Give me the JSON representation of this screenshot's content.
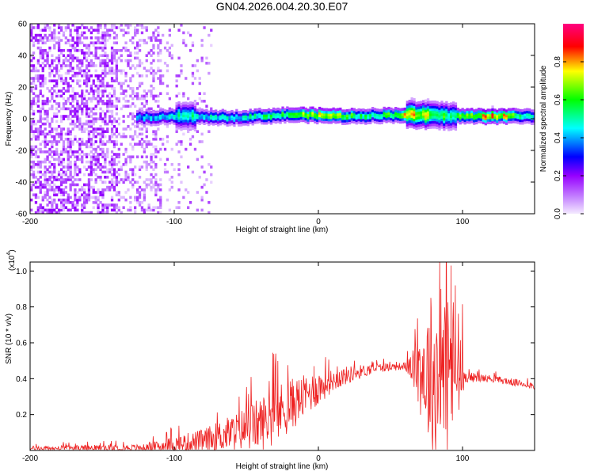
{
  "page": {
    "title": "GN04.2026.004.20.30.E07"
  },
  "chart_data": [
    {
      "id": "spectrogram",
      "type": "heatmap",
      "title": "GN04.2026.004.20.30.E07",
      "xlabel": "Height of straight line (km)",
      "ylabel": "Frequency (Hz)",
      "xlim": [
        -200,
        150
      ],
      "ylim": [
        -60,
        60
      ],
      "xticks": [
        -200,
        -100,
        0,
        100
      ],
      "xtick_labels": [
        "-200",
        "-100",
        "0",
        "100"
      ],
      "yticks": [
        -60,
        -40,
        -20,
        0,
        20,
        40,
        60
      ],
      "ytick_labels": [
        "-60",
        "-40",
        "-20",
        "0",
        "20",
        "40",
        "60"
      ],
      "colorbar": {
        "label": "Normalized spectral amplitude",
        "range": [
          0,
          1
        ],
        "ticks": [
          0.0,
          0.2,
          0.4,
          0.6,
          0.8
        ],
        "tick_labels": [
          "0.0",
          "0.2",
          "0.4",
          "0.6",
          "0.8"
        ],
        "colors": [
          "#f4eaff",
          "#9600ff",
          "#0000ff",
          "#00ffff",
          "#00ff00",
          "#ffff00",
          "#ff0000",
          "#ff0080"
        ]
      },
      "ridge": {
        "x_range": [
          -128,
          150
        ],
        "center_freq": [
          {
            "x": -128,
            "f": 0
          },
          {
            "x": -95,
            "f": 1
          },
          {
            "x": -60,
            "f": 0
          },
          {
            "x": -20,
            "f": 2
          },
          {
            "x": 20,
            "f": 1
          },
          {
            "x": 60,
            "f": 2
          },
          {
            "x": 100,
            "f": 1
          },
          {
            "x": 150,
            "f": 1
          }
        ],
        "peak_amplitude": [
          {
            "x": -128,
            "a": 0.45
          },
          {
            "x": -95,
            "a": 0.55
          },
          {
            "x": -60,
            "a": 0.5
          },
          {
            "x": -20,
            "a": 0.7
          },
          {
            "x": 0,
            "a": 0.8
          },
          {
            "x": 40,
            "a": 0.55
          },
          {
            "x": 65,
            "a": 0.9
          },
          {
            "x": 90,
            "a": 0.6
          },
          {
            "x": 120,
            "a": 0.95
          },
          {
            "x": 150,
            "a": 0.5
          }
        ]
      },
      "noise_region": {
        "x_range": [
          -200,
          -85
        ],
        "max_amplitude": 0.2
      }
    },
    {
      "id": "snr",
      "type": "line",
      "xlabel": "Height of straight line (km)",
      "ylabel": "SNR (10 * v/v)",
      "scale_label": "(x10",
      "scale_exp": "4",
      "scale_close": ")",
      "xlim": [
        -200,
        150
      ],
      "ylim": [
        0,
        1.05
      ],
      "xticks": [
        -200,
        -100,
        0,
        100
      ],
      "xtick_labels": [
        "-200",
        "-100",
        "0",
        "100"
      ],
      "yticks": [
        0.2,
        0.4,
        0.6,
        0.8,
        1.0
      ],
      "ytick_labels": [
        "0.2",
        "0.4",
        "0.6",
        "0.8",
        "1.0"
      ],
      "line_color": "#ee2222",
      "series": [
        {
          "name": "SNR",
          "envelope": [
            {
              "x": -200,
              "base": 0.01,
              "amp": 0.015
            },
            {
              "x": -120,
              "base": 0.015,
              "amp": 0.02
            },
            {
              "x": -100,
              "base": 0.03,
              "amp": 0.05
            },
            {
              "x": -80,
              "base": 0.05,
              "amp": 0.07
            },
            {
              "x": -60,
              "base": 0.1,
              "amp": 0.1
            },
            {
              "x": -40,
              "base": 0.15,
              "amp": 0.15
            },
            {
              "x": -30,
              "base": 0.2,
              "amp": 0.17
            },
            {
              "x": -20,
              "base": 0.25,
              "amp": 0.15
            },
            {
              "x": -10,
              "base": 0.3,
              "amp": 0.12
            },
            {
              "x": 0,
              "base": 0.35,
              "amp": 0.1
            },
            {
              "x": 10,
              "base": 0.39,
              "amp": 0.06
            },
            {
              "x": 20,
              "base": 0.42,
              "amp": 0.05
            },
            {
              "x": 40,
              "base": 0.46,
              "amp": 0.025
            },
            {
              "x": 60,
              "base": 0.47,
              "amp": 0.02
            },
            {
              "x": 65,
              "base": 0.46,
              "amp": 0.08
            },
            {
              "x": 72,
              "base": 0.45,
              "amp": 0.3
            },
            {
              "x": 80,
              "base": 0.4,
              "amp": 0.45
            },
            {
              "x": 90,
              "base": 0.45,
              "amp": 0.5
            },
            {
              "x": 100,
              "base": 0.45,
              "amp": 0.3
            },
            {
              "x": 101,
              "base": 0.41,
              "amp": 0.03
            },
            {
              "x": 120,
              "base": 0.4,
              "amp": 0.02
            },
            {
              "x": 150,
              "base": 0.36,
              "amp": 0.02
            }
          ],
          "peaks": [
            {
              "x": 92,
              "y": 1.03
            },
            {
              "x": 85,
              "y": 0.9
            },
            {
              "x": 78,
              "y": 0.85
            },
            {
              "x": 95,
              "y": 0.92
            },
            {
              "x": 5,
              "y": 0.52
            },
            {
              "x": -3,
              "y": 0.47
            },
            {
              "x": -30,
              "y": 0.38
            },
            {
              "x": -55,
              "y": 0.3
            }
          ]
        }
      ]
    }
  ]
}
